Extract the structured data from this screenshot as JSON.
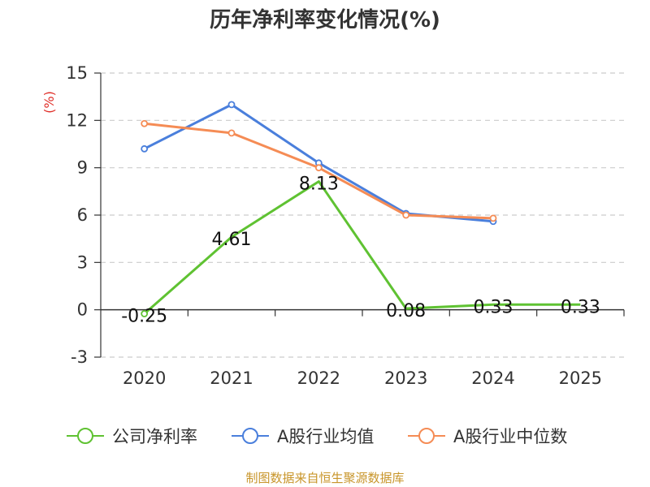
{
  "chart_data": {
    "type": "line",
    "title": "历年净利率变化情况(%)",
    "ylabel": "(%)",
    "xlabel": "",
    "categories": [
      "2020",
      "2021",
      "2022",
      "2023",
      "2024",
      "2025"
    ],
    "ylim": [
      -3,
      15
    ],
    "yticks": [
      15,
      12,
      9,
      6,
      3,
      0,
      -3
    ],
    "grid": true,
    "legend_position": "bottom",
    "series": [
      {
        "name": "公司净利率",
        "color": "#5fc232",
        "values": [
          -0.25,
          4.61,
          8.13,
          0.08,
          0.33,
          0.33
        ],
        "labels": [
          "-0.25",
          "4.61",
          "8.13",
          "0.08",
          "0.33",
          "0.33"
        ]
      },
      {
        "name": "A股行业均值",
        "color": "#4a7fdc",
        "values": [
          10.2,
          13.0,
          9.3,
          6.1,
          5.6,
          null
        ]
      },
      {
        "name": "A股行业中位数",
        "color": "#f58c55",
        "values": [
          11.8,
          11.2,
          9.0,
          6.0,
          5.8,
          null
        ]
      }
    ]
  },
  "source": "制图数据来自恒生聚源数据库"
}
